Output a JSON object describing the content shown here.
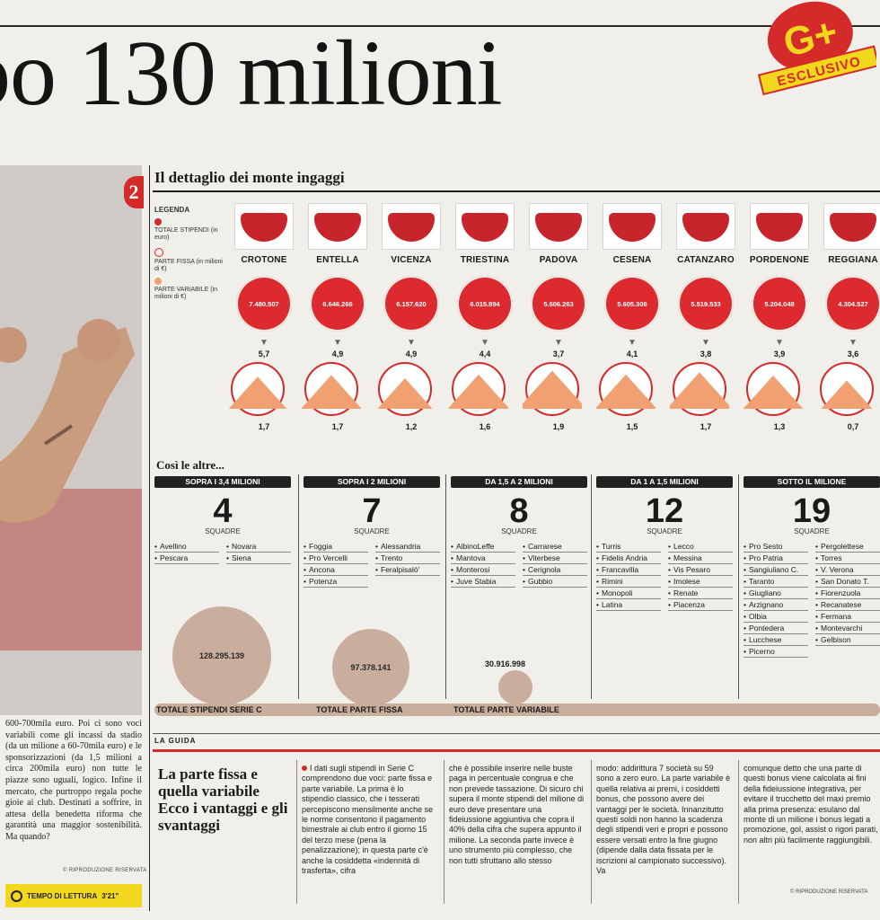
{
  "headline": {
    "text": "po 130 milioni"
  },
  "badge": {
    "mark": "G+",
    "label": "ESCLUSIVO",
    "colors": {
      "red": "#d42a2a",
      "yellow": "#f2d81c"
    }
  },
  "left_article": {
    "text": "600-700mila euro. Poi ci sono voci variabili come gli incassi da stadio (da un milione a 60-70mila euro) e le sponsorizzazioni (da 1,5 milioni a circa 200mila euro) non tutte le piazze sono uguali, logico. Infine il mercato, che purtroppo regala poche gioie ai club. Destinati a soffrire, in attesa della benedetta riforma che garantità una maggior sostenibilità. Ma quando?",
    "copyright": "© RIPRODUZIONE RISERVATA",
    "reading_time_label": "TEMPO DI LETTURA",
    "reading_time": "3'21\""
  },
  "infographic": {
    "section_number": "2",
    "title": "Il dettaglio dei monte ingaggi",
    "legend": {
      "title": "LEGENDA",
      "items": [
        "TOTALE STIPENDI (in euro)",
        "PARTE FISSA (in milioni di €)",
        "PARTE VARIABILE (in milioni di €)"
      ]
    },
    "teams": [
      {
        "name": "CROTONE",
        "total": "7.480.507",
        "fixed": "5,7",
        "variable": "1,7",
        "variable_share": 0.23
      },
      {
        "name": "ENTELLA",
        "total": "6.646.266",
        "fixed": "4,9",
        "variable": "1,7",
        "variable_share": 0.26
      },
      {
        "name": "VICENZA",
        "total": "6.157.620",
        "fixed": "4,9",
        "variable": "1,2",
        "variable_share": 0.2
      },
      {
        "name": "TRIESTINA",
        "total": "6.015.894",
        "fixed": "4,4",
        "variable": "1,6",
        "variable_share": 0.27
      },
      {
        "name": "PADOVA",
        "total": "5.606.263",
        "fixed": "3,7",
        "variable": "1,9",
        "variable_share": 0.34
      },
      {
        "name": "CESENA",
        "total": "5.605.306",
        "fixed": "4,1",
        "variable": "1,5",
        "variable_share": 0.27
      },
      {
        "name": "CATANZARO",
        "total": "5.519.533",
        "fixed": "3,8",
        "variable": "1,7",
        "variable_share": 0.31
      },
      {
        "name": "PORDENONE",
        "total": "5.204.048",
        "fixed": "3,9",
        "variable": "1,3",
        "variable_share": 0.25
      },
      {
        "name": "REGGIANA",
        "total": "4.304.527",
        "fixed": "3,6",
        "variable": "0,7",
        "variable_share": 0.16
      }
    ],
    "others_title": "Così le altre...",
    "groups": [
      {
        "header": "SOPRA I 3,4 MILIONI",
        "count": "4",
        "unit": "SQUADRE",
        "teams": [
          "Avellino",
          "Novara",
          "Pescara",
          "Siena"
        ]
      },
      {
        "header": "SOPRA I 2 MILIONI",
        "count": "7",
        "unit": "SQUADRE",
        "teams": [
          "Foggia",
          "Alessandria",
          "Pro Vercelli",
          "Trento",
          "Ancona",
          "Feralpisalò'",
          "Potenza"
        ]
      },
      {
        "header": "DA 1,5 A 2 MILIONI",
        "count": "8",
        "unit": "SQUADRE",
        "teams": [
          "AlbinoLeffe",
          "Carrarese",
          "Mantova",
          "Viterbese",
          "Monterosi",
          "Cerignola",
          "Juve Stabia",
          "Gubbio"
        ]
      },
      {
        "header": "DA 1 A 1,5 MILIONI",
        "count": "12",
        "unit": "SQUADRE",
        "teams": [
          "Turris",
          "Lecco",
          "Fidelis Andria",
          "Messina",
          "Francavilla",
          "Vis Pesaro",
          "Rimini",
          "Imolese",
          "Monopoli",
          "Renate",
          "Latina",
          "Piacenza"
        ]
      },
      {
        "header": "SOTTO IL MILIONE",
        "count": "19",
        "unit": "SQUADRE",
        "teams": [
          "Pro Sesto",
          "Pergolettese",
          "Pro Patria",
          "Torres",
          "Sangiuliano C.",
          "V. Verona",
          "Taranto",
          "San Donato T.",
          "Giugliano",
          "Fiorenzuola",
          "Arzignano",
          "Recanatese",
          "Olbia",
          "Fermana",
          "Pontedera",
          "Montevarchi",
          "Lucchese",
          "Gelbison",
          "Picerno"
        ]
      }
    ],
    "totals": [
      {
        "label": "TOTALE STIPENDI SERIE C",
        "value": "128.295.139"
      },
      {
        "label": "TOTALE PARTE FISSA",
        "value": "97.378.141"
      },
      {
        "label": "TOTALE PARTE VARIABILE",
        "value": "30.916.998"
      }
    ]
  },
  "guida": {
    "section": "LA GUIDA",
    "title": "La parte fissa e quella variabile Ecco i vantaggi e gli svantaggi",
    "columns": [
      "I dati sugli stipendi in Serie C comprendono due voci: parte fissa e parte variabile. La prima è lo stipendio classico, che i tesserati percepiscono mensilmente anche se le norme consentono il pagamento bimestrale ai club entro il giorno 15 del terzo mese (pena la penalizzazione); in questa parte c'è anche la cosiddetta «indennità di trasferta», cifra",
      "che è possibile inserire nelle buste paga in percentuale congrua e che non prevede tassazione. Di sicuro chi supera il monte stipendi del milione di euro deve presentare una fideiussione aggiuntiva che copra il 40% della cifra che supera appunto il milione. La seconda parte invece è uno strumento più complesso, che non tutti sfruttano allo stesso",
      "modo: addirittura 7 società su 59 sono a zero euro. La parte variabile è quella relativa ai premi, i cosiddetti bonus, che possono avere dei vantaggi per le società. Innanzitutto questi soldi non hanno la scadenza degli stipendi veri e propri e possono essere versati entro la fine giugno (dipende dalla data fissata per le iscrizioni al campionato successivo). Va",
      "comunque detto che una parte di questi bonus viene calcolata ai fini della fideiussione integrativa, per evitare il trucchetto del maxi premio alla prima presenza: esulano dal monte di un milione i bonus legati a promozione, gol, assist o rigori parati, non altri più facilmente raggiungibili."
    ],
    "copyright": "© RIPRODUZIONE RISERVATA"
  }
}
